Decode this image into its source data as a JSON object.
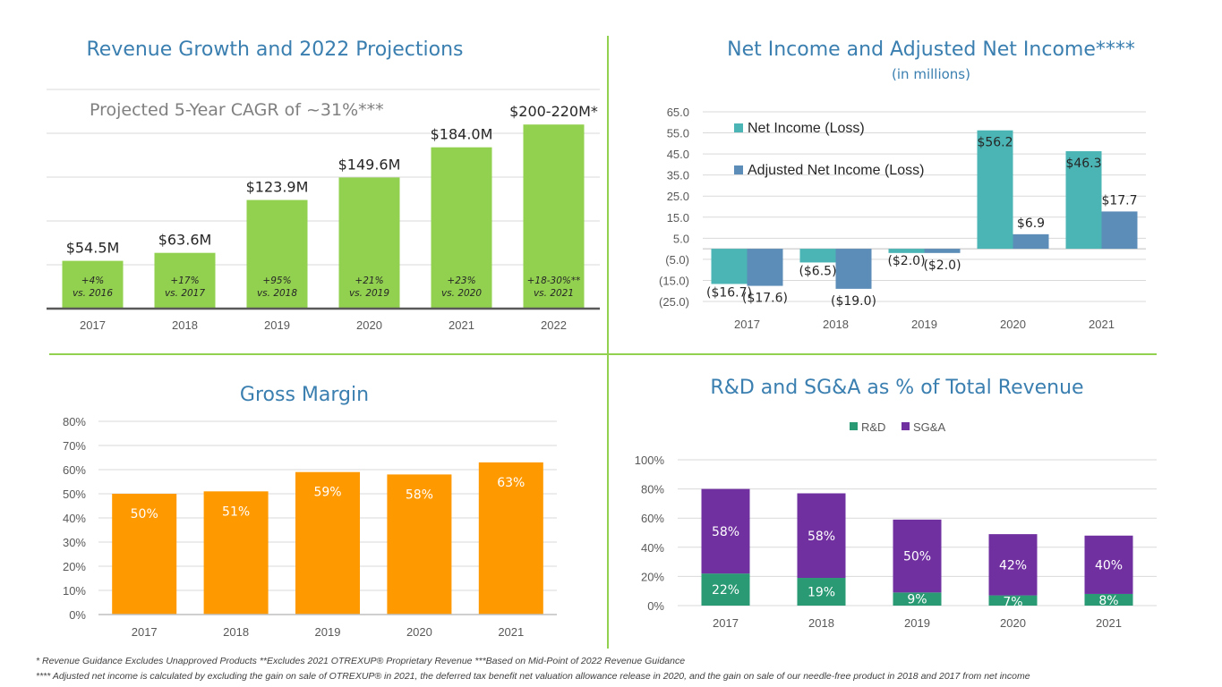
{
  "colors": {
    "accent": "#92d050",
    "divider": "#92d050",
    "title": "#3a7fb0",
    "orange": "#ff9900",
    "teal": "#4bb5b5",
    "steel": "#5b8db8",
    "green_dark": "#2a9a74",
    "purple": "#7030a0"
  },
  "chart_data": [
    {
      "type": "bar",
      "title": "Revenue Growth and 2022 Projections",
      "annotation": "Projected 5-Year CAGR of ~31%***",
      "categories": [
        "2017",
        "2018",
        "2019",
        "2020",
        "2021",
        "2022"
      ],
      "values": [
        54.5,
        63.6,
        123.9,
        149.6,
        184.0,
        210
      ],
      "value_labels": [
        "$54.5M",
        "$63.6M",
        "$123.9M",
        "$149.6M",
        "$184.0M",
        "$200-220M*"
      ],
      "growth_labels": [
        [
          "+4%",
          "vs. 2016"
        ],
        [
          "+17%",
          "vs. 2017"
        ],
        [
          "+95%",
          "vs. 2018"
        ],
        [
          "+21%",
          "vs. 2019"
        ],
        [
          "+23%",
          "vs. 2020"
        ],
        [
          "+18-30%**",
          "vs. 2021"
        ]
      ],
      "ylim": [
        0,
        250
      ]
    },
    {
      "type": "bar",
      "title": "Net Income and Adjusted Net Income****",
      "subtitle": "(in millions)",
      "categories": [
        "2017",
        "2018",
        "2019",
        "2020",
        "2021"
      ],
      "series": [
        {
          "name": "Net Income (Loss)",
          "values": [
            -16.7,
            -6.5,
            -2.0,
            56.2,
            46.3
          ],
          "labels": [
            "($16.7)",
            "($6.5)",
            "($2.0)",
            "$56.2",
            "$46.3"
          ]
        },
        {
          "name": "Adjusted Net Income (Loss)",
          "values": [
            -17.6,
            -19.0,
            -2.0,
            6.9,
            17.7
          ],
          "labels": [
            "($17.6)",
            "($19.0)",
            "($2.0)",
            "$6.9",
            "$17.7"
          ]
        }
      ],
      "yticks": [
        "65.0",
        "55.0",
        "45.0",
        "35.0",
        "25.0",
        "15.0",
        "5.0",
        "(5.0)",
        "(15.0)",
        "(25.0)"
      ],
      "ylim": [
        -25,
        65
      ]
    },
    {
      "type": "bar",
      "title": "Gross Margin",
      "categories": [
        "2017",
        "2018",
        "2019",
        "2020",
        "2021"
      ],
      "values": [
        50,
        51,
        59,
        58,
        63
      ],
      "value_labels": [
        "50%",
        "51%",
        "59%",
        "58%",
        "63%"
      ],
      "yticks": [
        "0%",
        "10%",
        "20%",
        "30%",
        "40%",
        "50%",
        "60%",
        "70%",
        "80%"
      ],
      "ylim": [
        0,
        80
      ]
    },
    {
      "type": "bar",
      "stacked": true,
      "title": "R&D and SG&A as % of Total Revenue",
      "categories": [
        "2017",
        "2018",
        "2019",
        "2020",
        "2021"
      ],
      "series": [
        {
          "name": "R&D",
          "values": [
            22,
            19,
            9,
            7,
            8
          ],
          "labels": [
            "22%",
            "19%",
            "9%",
            "7%",
            "8%"
          ]
        },
        {
          "name": "SG&A",
          "values": [
            58,
            58,
            50,
            42,
            40
          ],
          "labels": [
            "58%",
            "58%",
            "50%",
            "42%",
            "40%"
          ]
        }
      ],
      "yticks": [
        "0%",
        "20%",
        "40%",
        "60%",
        "80%",
        "100%"
      ],
      "ylim": [
        0,
        100
      ]
    }
  ],
  "footnotes": {
    "line1": "* Revenue Guidance Excludes Unapproved Products  **Excludes 2021 OTREXUP® Proprietary Revenue   ***Based on Mid-Point of 2022 Revenue Guidance",
    "line2": "**** Adjusted net income is calculated by excluding the gain on sale of OTREXUP® in 2021, the deferred tax benefit net valuation allowance release in 2020, and the gain on sale of our needle-free product in 2018 and 2017 from net income"
  }
}
